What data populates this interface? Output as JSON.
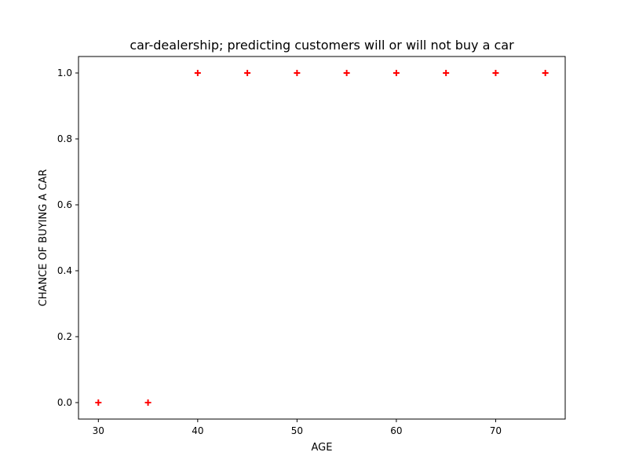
{
  "chart_data": {
    "type": "scatter",
    "title": "car-dealership; predicting customers will or will not buy a car",
    "xlabel": "AGE",
    "ylabel": "CHANCE OF BUYING A CAR",
    "xlim": [
      28,
      77
    ],
    "ylim": [
      -0.05,
      1.05
    ],
    "x_ticks": [
      30,
      40,
      50,
      60,
      70
    ],
    "y_ticks": [
      0.0,
      0.2,
      0.4,
      0.6,
      0.8,
      1.0
    ],
    "x_tick_labels": [
      "30",
      "40",
      "50",
      "60",
      "70"
    ],
    "y_tick_labels": [
      "0.0",
      "0.2",
      "0.4",
      "0.6",
      "0.8",
      "1.0"
    ],
    "grid": false,
    "legend": "none",
    "series": [
      {
        "marker": "plus",
        "color": "#ff0000",
        "x": [
          30,
          35,
          40,
          45,
          50,
          55,
          60,
          65,
          70,
          75
        ],
        "y": [
          0,
          0,
          1,
          1,
          1,
          1,
          1,
          1,
          1,
          1
        ]
      }
    ]
  }
}
